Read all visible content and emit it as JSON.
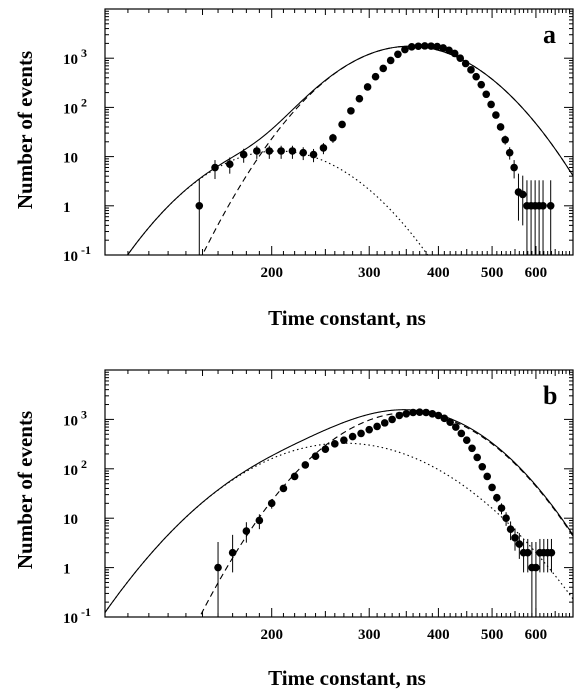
{
  "chart_data": [
    {
      "type": "scatter",
      "panel_label": "a",
      "xlabel": "Time constant, ns",
      "ylabel": "Number of events",
      "x_scale": "log",
      "y_scale": "log",
      "xlim": [
        100,
        700
      ],
      "ylim": [
        0.1,
        10000
      ],
      "x_ticks": [
        200,
        300,
        400,
        500,
        600
      ],
      "y_ticks": [
        {
          "value": 0.1,
          "base": "10",
          "exp": "-1"
        },
        {
          "value": 1,
          "base": "1",
          "exp": ""
        },
        {
          "value": 10,
          "base": "10",
          "exp": ""
        },
        {
          "value": 100,
          "base": "10",
          "exp": "2"
        },
        {
          "value": 1000,
          "base": "10",
          "exp": "3"
        }
      ],
      "points": {
        "x": [
          148,
          158,
          168,
          178,
          188,
          198,
          208,
          218,
          228,
          238,
          248,
          258,
          268,
          278,
          288,
          298,
          308,
          318,
          328,
          338,
          348,
          358,
          368,
          378,
          388,
          398,
          408,
          418,
          428,
          438,
          448,
          458,
          468,
          478,
          488,
          498,
          508,
          518,
          528,
          538,
          548,
          558,
          568,
          578,
          588,
          598,
          608,
          618,
          638
        ],
        "y": [
          1,
          6,
          7,
          11,
          13,
          13,
          13,
          13,
          12,
          11,
          15,
          24,
          45,
          85,
          150,
          260,
          420,
          620,
          900,
          1200,
          1500,
          1700,
          1750,
          1780,
          1760,
          1720,
          1620,
          1450,
          1250,
          1000,
          780,
          580,
          420,
          290,
          185,
          115,
          70,
          40,
          22,
          12,
          6,
          1.9,
          1.7,
          1,
          1,
          1,
          1,
          1,
          1
        ],
        "err_low": [
          0.9,
          2.5,
          2.5,
          3.5,
          4,
          4,
          4,
          4,
          3.5,
          3.3,
          3.8,
          5,
          7,
          9,
          0,
          0,
          0,
          0,
          0,
          0,
          0,
          0,
          0,
          0,
          0,
          0,
          0,
          0,
          0,
          0,
          0,
          0,
          0,
          0,
          0,
          0,
          0,
          6,
          4.5,
          3.3,
          2.4,
          1.4,
          1.3,
          0.9,
          0.9,
          0.9,
          0.9,
          0.9,
          0.9
        ],
        "err_high": [
          2.5,
          2.5,
          2.6,
          3.4,
          3.6,
          3.6,
          3.6,
          3.6,
          3.5,
          3.3,
          3.8,
          5,
          7,
          9,
          0,
          0,
          0,
          0,
          0,
          0,
          0,
          0,
          0,
          0,
          0,
          0,
          0,
          0,
          0,
          0,
          0,
          0,
          0,
          0,
          0,
          0,
          0,
          6,
          4.7,
          3.5,
          2.5,
          2.6,
          2.4,
          2.3,
          2.3,
          2.3,
          2.3,
          2.3,
          2.3
        ]
      },
      "fits": [
        {
          "style": "solid",
          "peak_x": 355,
          "peak_y": 1750,
          "sigma_ln": 0.195,
          "baseline_peak_x": 205,
          "baseline_peak_y": 13,
          "baseline_sigma_ln": 0.2
        },
        {
          "style": "dashed",
          "peak_x": 355,
          "peak_y": 1750,
          "sigma_ln": 0.195
        },
        {
          "style": "dotted",
          "peak_x": 205,
          "peak_y": 13,
          "sigma_ln": 0.2
        }
      ]
    },
    {
      "type": "scatter",
      "panel_label": "b",
      "xlabel": "Time constant, ns",
      "ylabel": "Number of events",
      "x_scale": "log",
      "y_scale": "log",
      "xlim": [
        100,
        700
      ],
      "ylim": [
        0.1,
        10000
      ],
      "x_ticks": [
        200,
        300,
        400,
        500,
        600
      ],
      "y_ticks": [
        {
          "value": 0.1,
          "base": "10",
          "exp": "-1"
        },
        {
          "value": 1,
          "base": "1",
          "exp": ""
        },
        {
          "value": 10,
          "base": "10",
          "exp": ""
        },
        {
          "value": 100,
          "base": "10",
          "exp": "2"
        },
        {
          "value": 1000,
          "base": "10",
          "exp": "3"
        }
      ],
      "points": {
        "x": [
          160,
          170,
          180,
          190,
          200,
          210,
          220,
          230,
          240,
          250,
          260,
          270,
          280,
          290,
          300,
          310,
          320,
          330,
          340,
          350,
          360,
          370,
          380,
          390,
          400,
          410,
          420,
          430,
          440,
          450,
          460,
          470,
          480,
          490,
          500,
          510,
          520,
          530,
          540,
          550,
          560,
          570,
          580,
          590,
          600,
          610,
          620,
          630,
          640
        ],
        "y": [
          1,
          2,
          5.5,
          9,
          20,
          40,
          70,
          120,
          180,
          250,
          320,
          380,
          450,
          520,
          620,
          720,
          850,
          1000,
          1200,
          1300,
          1380,
          1400,
          1380,
          1300,
          1200,
          1050,
          880,
          700,
          520,
          380,
          260,
          170,
          110,
          70,
          42,
          26,
          16,
          10,
          6,
          4,
          3,
          2,
          2,
          1,
          1,
          2,
          2,
          2,
          2
        ],
        "err_low": [
          0.9,
          1.2,
          2.3,
          3,
          4.4,
          6,
          8,
          0,
          0,
          0,
          0,
          0,
          0,
          0,
          0,
          0,
          0,
          0,
          0,
          0,
          0,
          0,
          0,
          0,
          0,
          0,
          0,
          0,
          0,
          0,
          0,
          0,
          0,
          0,
          6.5,
          5,
          4,
          3,
          2.4,
          1.8,
          1.5,
          1.2,
          1.2,
          0.9,
          0.9,
          1.2,
          1.2,
          1.2,
          1.2
        ],
        "err_high": [
          2.3,
          2.6,
          2.8,
          3,
          4.4,
          6,
          8,
          0,
          0,
          0,
          0,
          0,
          0,
          0,
          0,
          0,
          0,
          0,
          0,
          0,
          0,
          0,
          0,
          0,
          0,
          0,
          0,
          0,
          0,
          0,
          0,
          0,
          0,
          0,
          6.5,
          5,
          4,
          3.2,
          2.6,
          2.2,
          2,
          1.8,
          1.8,
          2.3,
          2.3,
          1.8,
          1.8,
          1.8,
          1.8
        ]
      },
      "fits": [
        {
          "style": "solid",
          "peak_x": 355,
          "peak_y": 1380,
          "sigma_ln": 0.2,
          "baseline_peak_x": 270,
          "baseline_peak_y": 330,
          "baseline_sigma_ln": 0.25
        },
        {
          "style": "dashed",
          "peak_x": 355,
          "peak_y": 1380,
          "sigma_ln": 0.2
        },
        {
          "style": "dotted",
          "peak_x": 270,
          "peak_y": 330,
          "sigma_ln": 0.25
        }
      ]
    }
  ]
}
